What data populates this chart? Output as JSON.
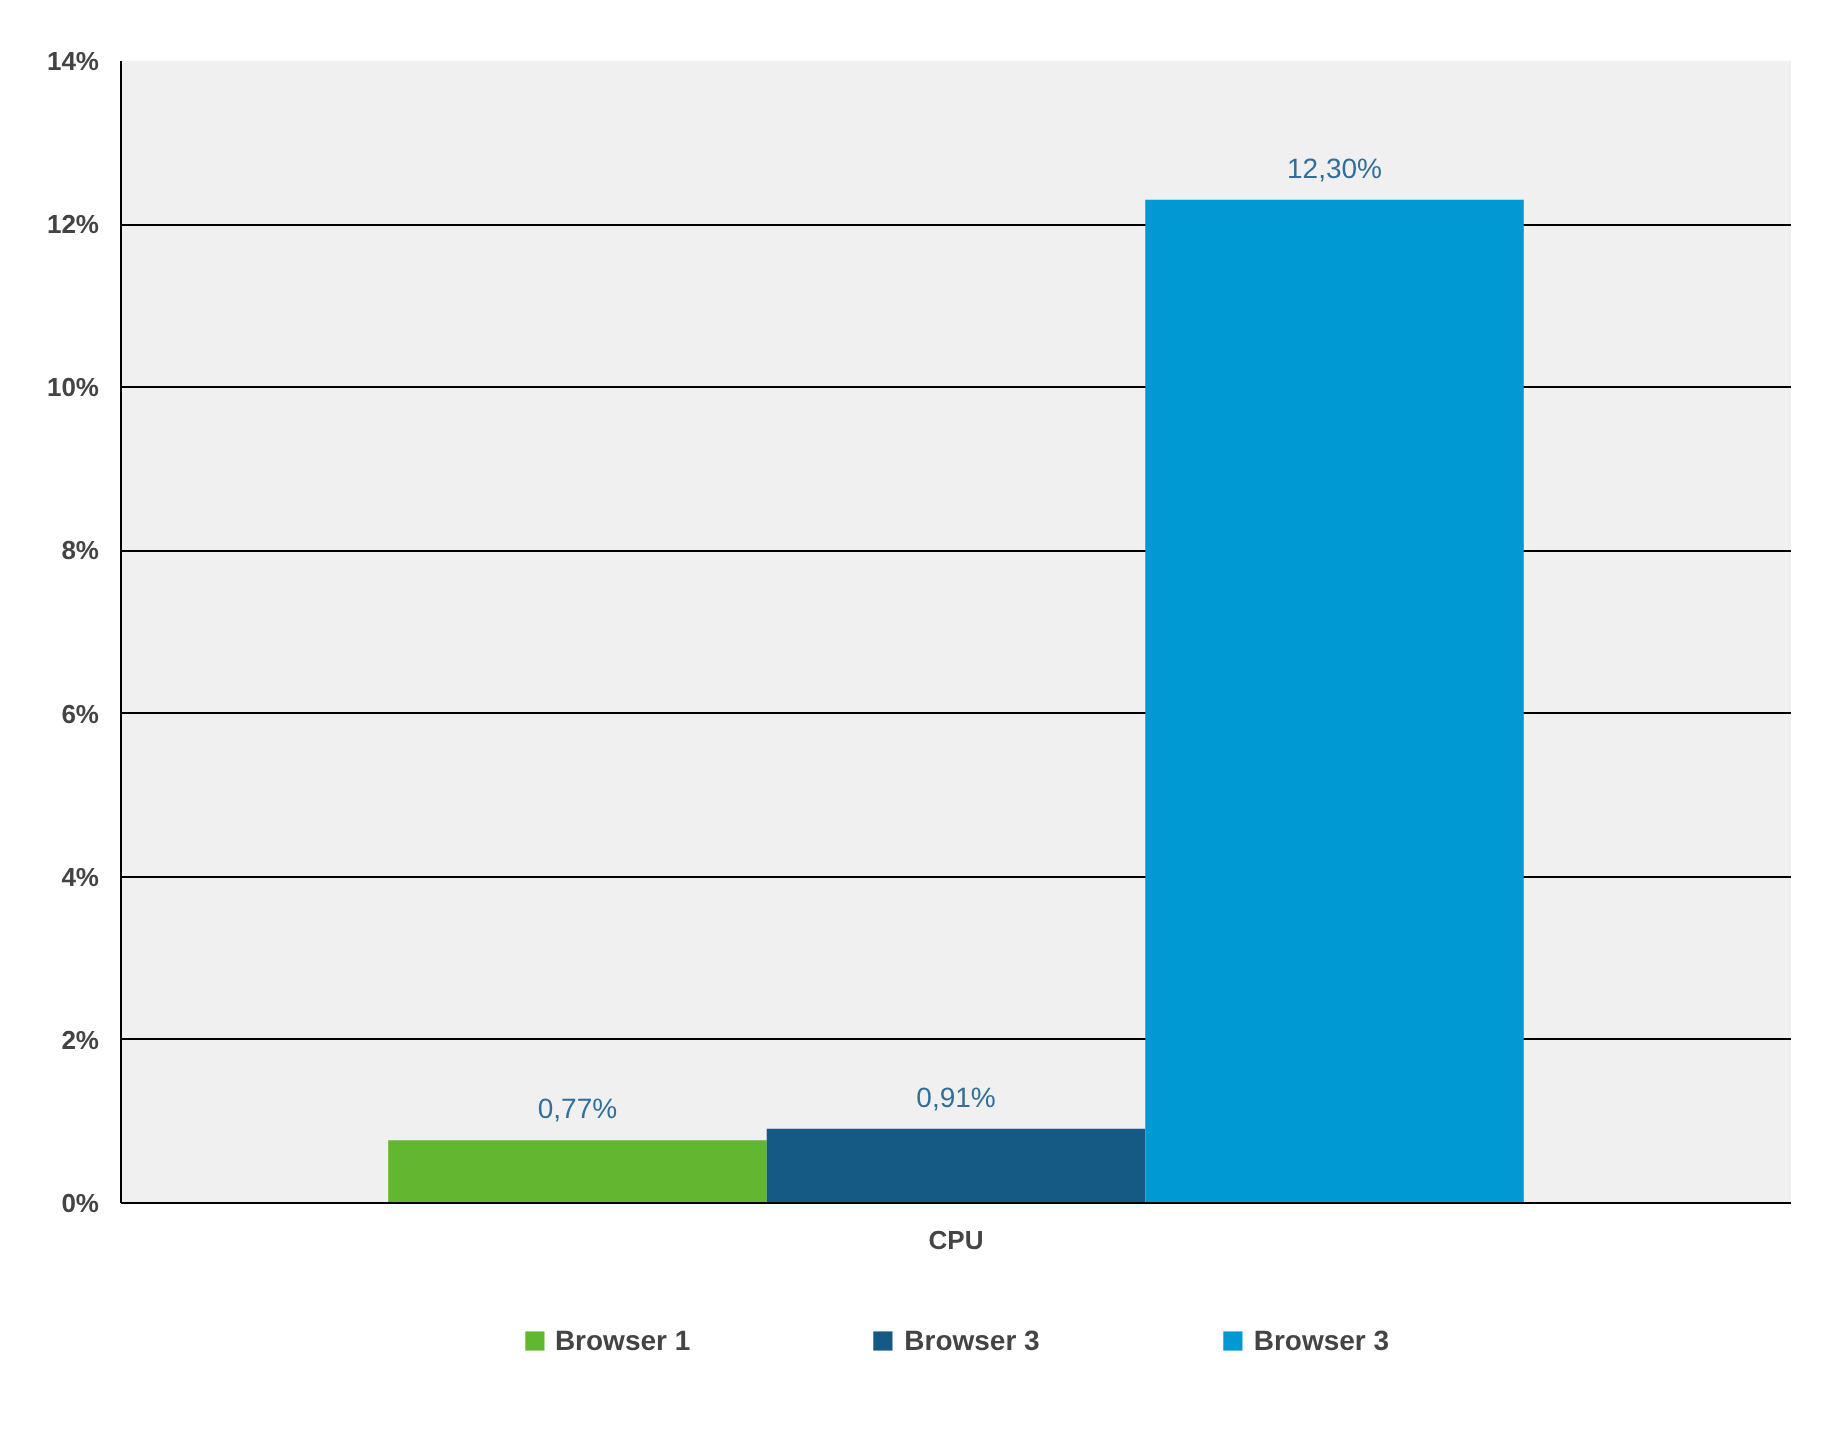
{
  "chart_data": {
    "type": "bar",
    "categories": [
      "CPU"
    ],
    "series": [
      {
        "name": "Browser 1",
        "color": "#62b731",
        "values": [
          0.77
        ],
        "value_labels": [
          "0,77%"
        ]
      },
      {
        "name": "Browser 3",
        "color": "#155a85",
        "values": [
          0.91
        ],
        "value_labels": [
          "0,91%"
        ]
      },
      {
        "name": "Browser 3",
        "color": "#0099d4",
        "values": [
          12.3
        ],
        "value_labels": [
          "12,30%"
        ]
      }
    ],
    "ylim": [
      0,
      14
    ],
    "yticks": [
      {
        "value": 0,
        "label": "0%"
      },
      {
        "value": 2,
        "label": "2%"
      },
      {
        "value": 4,
        "label": "4%"
      },
      {
        "value": 6,
        "label": "6%"
      },
      {
        "value": 8,
        "label": "8%"
      },
      {
        "value": 10,
        "label": "10%"
      },
      {
        "value": 12,
        "label": "12%"
      },
      {
        "value": 14,
        "label": "14%"
      }
    ],
    "grid": "y",
    "legend": "bottom"
  }
}
